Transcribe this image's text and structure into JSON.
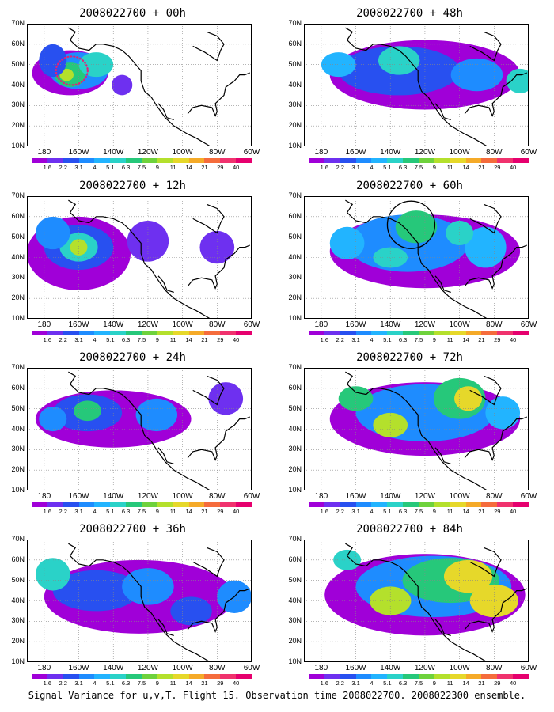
{
  "figure_caption": "Signal Variance for u,v,T. Flight 15. Observation time 2008022700. 2008022300 ensemble.",
  "colorbar": {
    "labels": [
      "1.6",
      "2.2",
      "3.1",
      "4",
      "5.1",
      "6.3",
      "7.5",
      "9",
      "11",
      "14",
      "21",
      "29",
      "40"
    ],
    "colors": [
      "#a000d8",
      "#6e30f0",
      "#2850f0",
      "#1e8cff",
      "#22b4ff",
      "#2ad2c8",
      "#26c87a",
      "#6ed23c",
      "#b4e02c",
      "#e6d82a",
      "#f5aa28",
      "#f56c3c",
      "#f0326e",
      "#e6006e"
    ]
  },
  "map": {
    "lat_labels": [
      "10N",
      "20N",
      "30N",
      "40N",
      "50N",
      "60N",
      "70N"
    ],
    "lon_labels": [
      "180",
      "160W",
      "140W",
      "120W",
      "100W",
      "80W",
      "60W"
    ]
  },
  "chart_data": [
    {
      "type": "heatmap",
      "title": "2008022700 + 00h",
      "lead_hours": 0,
      "field": "signal variance u,v,T",
      "max_region": "central North Pacific (~45N,165W)",
      "annotation": "dotted magenta contour",
      "peak_class": "9"
    },
    {
      "type": "heatmap",
      "title": "2008022700 + 12h",
      "lead_hours": 12,
      "field": "signal variance u,v,T",
      "max_region": "North Pacific (~45N,160W)",
      "peak_class": "9"
    },
    {
      "type": "heatmap",
      "title": "2008022700 + 24h",
      "lead_hours": 24,
      "field": "signal variance u,v,T",
      "max_region": "North Pacific (~48N,155W)",
      "peak_class": "7.5"
    },
    {
      "type": "heatmap",
      "title": "2008022700 + 36h",
      "lead_hours": 36,
      "field": "signal variance u,v,T",
      "max_region": "Pacific / western North America",
      "peak_class": "6.3"
    },
    {
      "type": "heatmap",
      "title": "2008022700 + 48h",
      "lead_hours": 48,
      "field": "signal variance u,v,T",
      "max_region": "Gulf of Alaska (~50N,135W)",
      "peak_class": "7.5"
    },
    {
      "type": "heatmap",
      "title": "2008022700 + 60h",
      "lead_hours": 60,
      "field": "signal variance u,v,T",
      "max_region": "Pacific Northwest (~55N,125W)",
      "annotation": "black circle",
      "peak_class": "9"
    },
    {
      "type": "heatmap",
      "title": "2008022700 + 72h",
      "lead_hours": 72,
      "field": "signal variance u,v,T",
      "max_region": "central Canada (~55N,95W)",
      "peak_class": "11"
    },
    {
      "type": "heatmap",
      "title": "2008022700 + 84h",
      "lead_hours": 84,
      "field": "signal variance u,v,T",
      "max_region": "eastern North America (~40N,80W)",
      "peak_class": "11"
    }
  ]
}
